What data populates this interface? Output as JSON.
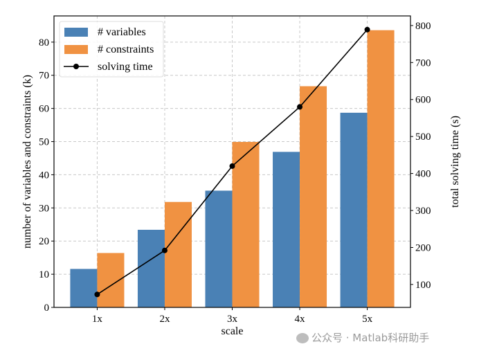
{
  "chart_data": {
    "type": "bar",
    "categories": [
      "1x",
      "2x",
      "3x",
      "4x",
      "5x"
    ],
    "xlabel": "scale",
    "ylabel": "number of variables and constraints (k)",
    "ylabel_right": "total solving time (s)",
    "ylim": [
      0,
      87.9
    ],
    "ylim_right": [
      38,
      826
    ],
    "xlim": [
      0.36,
      5.64
    ],
    "yticks": [
      0,
      10,
      20,
      30,
      40,
      50,
      60,
      70,
      80
    ],
    "yticks_right": [
      100,
      200,
      300,
      400,
      500,
      600,
      700,
      800
    ],
    "grid": true,
    "legend_placement": "top-left",
    "series": [
      {
        "name": "# variables",
        "type": "bar",
        "axis": "left",
        "color": "#4a81b5",
        "values": [
          11.6,
          23.4,
          35.2,
          46.9,
          58.7
        ]
      },
      {
        "name": "# constraints",
        "type": "bar",
        "axis": "left",
        "color": "#f09242",
        "values": [
          16.4,
          31.8,
          49.9,
          66.7,
          83.6
        ]
      },
      {
        "name": "solving time",
        "type": "line",
        "axis": "right",
        "color": "#000000",
        "values": [
          73,
          192,
          420,
          580,
          789
        ]
      }
    ]
  },
  "watermark": "公众号 · Matlab科研助手"
}
